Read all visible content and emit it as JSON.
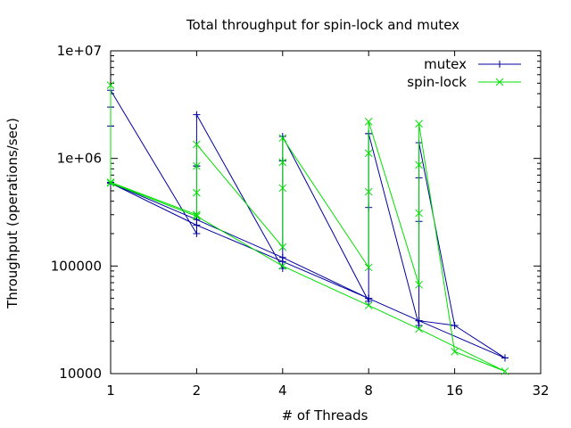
{
  "chart_data": {
    "type": "line",
    "title": "Total throughput for spin-lock and mutex",
    "xlabel": "# of Threads",
    "ylabel": "Throughput (operations/sec)",
    "x_scale": "log2",
    "y_scale": "log10",
    "xlim": [
      1,
      32
    ],
    "ylim": [
      10000,
      10000000
    ],
    "x_ticks": [
      {
        "value": 1,
        "label": "1"
      },
      {
        "value": 2,
        "label": "2"
      },
      {
        "value": 4,
        "label": "4"
      },
      {
        "value": 8,
        "label": "8"
      },
      {
        "value": 16,
        "label": "16"
      },
      {
        "value": 32,
        "label": "32"
      }
    ],
    "y_ticks": [
      {
        "value": 10000,
        "label": "10000"
      },
      {
        "value": 100000,
        "label": "100000"
      },
      {
        "value": 1000000,
        "label": "1e+06"
      },
      {
        "value": 10000000,
        "label": "1e+07"
      }
    ],
    "grid": false,
    "legend_position": "top-right",
    "series": [
      {
        "name": "mutex",
        "color": "#0000a0",
        "marker": "plus",
        "x": [
          1,
          1,
          1,
          1,
          2,
          2,
          2,
          2,
          4,
          4,
          4,
          4,
          8,
          8,
          8,
          8,
          12,
          12,
          12,
          12,
          16,
          24,
          24,
          12,
          8,
          4,
          2,
          1,
          1,
          2,
          4,
          8,
          12,
          16
        ],
        "y": [
          600000,
          3000000,
          2000000,
          4300000,
          200000,
          850000,
          850000,
          2550000,
          95000,
          950000,
          950000,
          1600000,
          47000,
          350000,
          1700000,
          1700000,
          28000,
          260000,
          660000,
          1400000,
          28000,
          14000,
          14000,
          31000,
          50000,
          110000,
          240000,
          590000,
          590000,
          270000,
          120000,
          50000,
          31000,
          28000
        ]
      },
      {
        "name": "spin-lock",
        "color": "#00e000",
        "marker": "cross",
        "x": [
          1,
          1,
          2,
          2,
          2,
          2,
          4,
          4,
          4,
          4,
          8,
          8,
          8,
          8,
          12,
          12,
          12,
          12,
          16,
          24,
          12,
          8,
          4,
          2,
          1
        ],
        "y": [
          4800000,
          600000,
          300000,
          480000,
          850000,
          1350000,
          150000,
          530000,
          920000,
          1550000,
          97000,
          490000,
          1120000,
          2200000,
          67000,
          310000,
          870000,
          2100000,
          16000,
          10500,
          26000,
          43000,
          100000,
          290000,
          590000
        ]
      }
    ]
  }
}
